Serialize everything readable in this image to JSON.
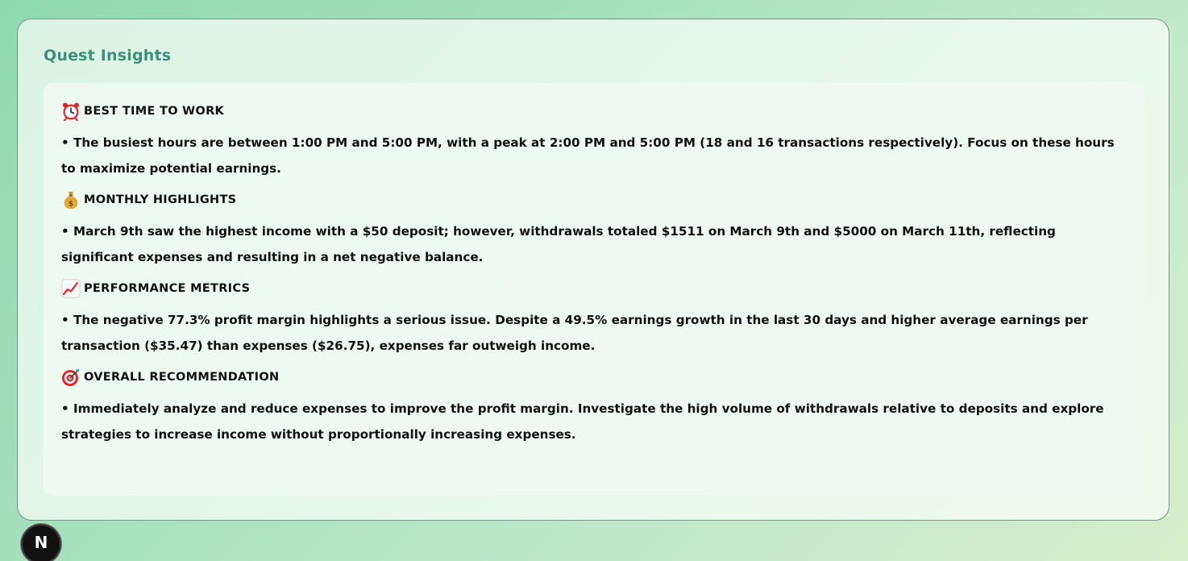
{
  "card": {
    "title": "Quest Insights"
  },
  "sections": [
    {
      "icon": "alarm-clock-icon",
      "title": "Best Time to Work",
      "body": "• The busiest hours are between 1:00 PM and 5:00 PM, with a peak at 2:00 PM and 5:00 PM (18 and 16 transactions respectively).  Focus on these hours to maximize potential earnings."
    },
    {
      "icon": "money-bag-icon",
      "title": "Monthly Highlights",
      "body": "• March 9th saw the highest income with a $50 deposit; however, withdrawals totaled $1511 on March 9th and $5000 on March 11th, reflecting significant expenses and resulting in a net negative balance."
    },
    {
      "icon": "chart-increasing-icon",
      "title": "Performance Metrics",
      "body": "• The negative 77.3% profit margin highlights a serious issue.  Despite a 49.5% earnings growth in the last 30 days and higher average earnings per transaction ($35.47) than expenses ($26.75), expenses far outweigh income."
    },
    {
      "icon": "target-icon",
      "title": "Overall Recommendation",
      "body": "•  Immediately analyze and reduce expenses to improve the profit margin.  Investigate the high volume of withdrawals relative to deposits and explore strategies to increase income without proportionally increasing expenses."
    }
  ],
  "badge": {
    "letter": "N",
    "icon": "nextjs-logo-icon"
  }
}
